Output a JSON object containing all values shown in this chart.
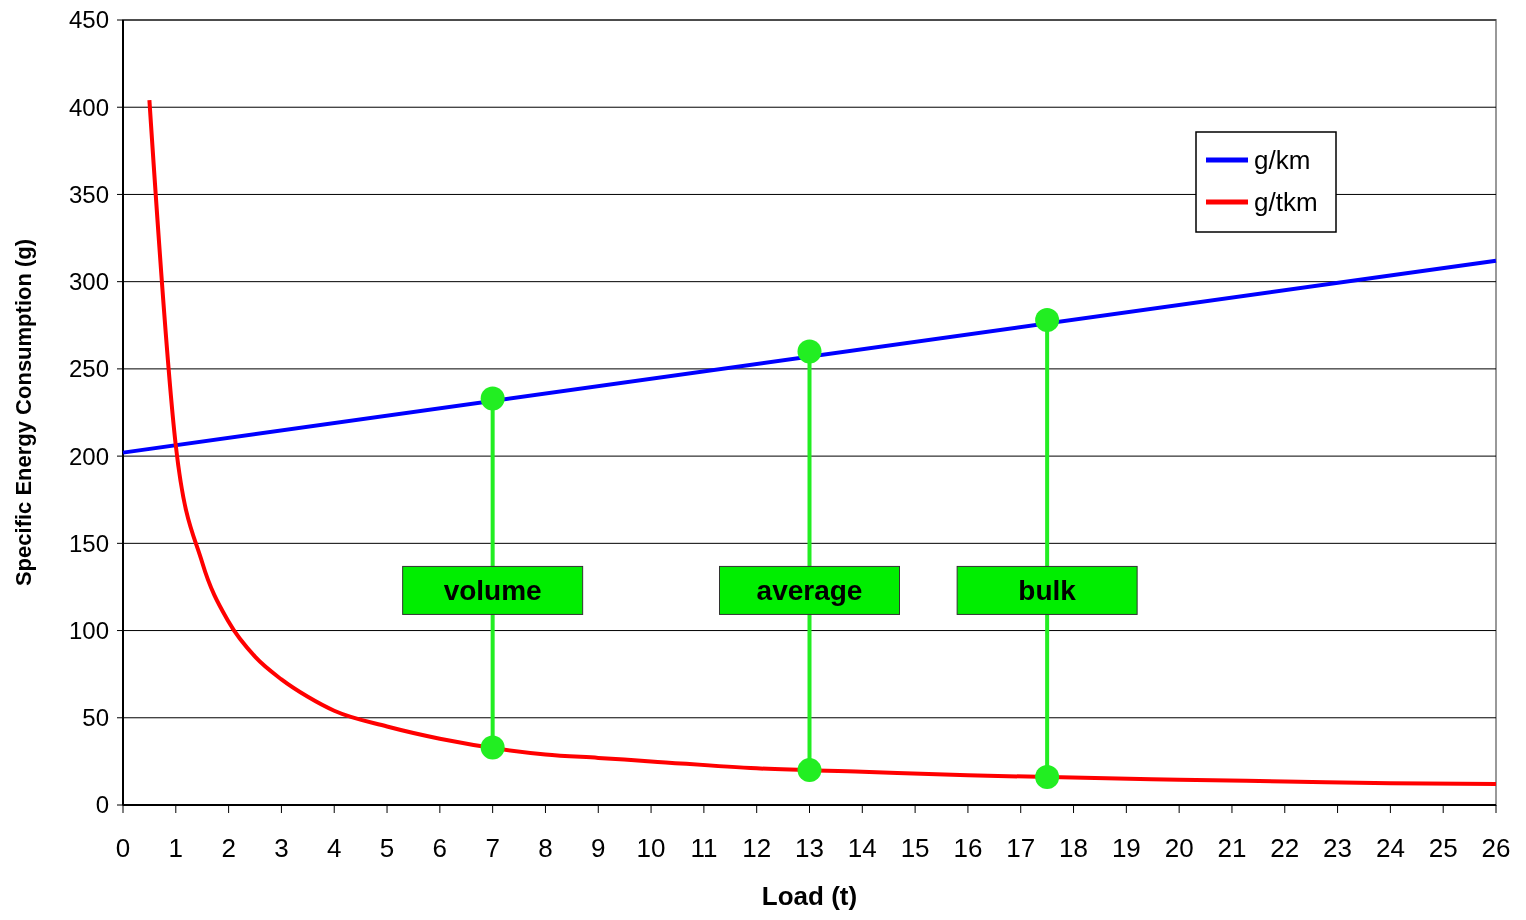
{
  "chart_data": {
    "type": "line",
    "xlabel": "Load (t)",
    "ylabel": "Specific Energy Consumption (g)",
    "xlim": [
      0,
      26
    ],
    "xticks": [
      0,
      1,
      2,
      3,
      4,
      5,
      6,
      7,
      8,
      9,
      10,
      11,
      12,
      13,
      14,
      15,
      16,
      17,
      18,
      19,
      20,
      21,
      22,
      23,
      24,
      25,
      26
    ],
    "ylim": [
      0,
      450
    ],
    "yticks": [
      0,
      50,
      100,
      150,
      200,
      250,
      300,
      350,
      400,
      450
    ],
    "grid": "y",
    "legend": "top right",
    "line_style": "solid",
    "series": [
      {
        "name": "g/km",
        "color": "#0000ff",
        "x": [
          0,
          26
        ],
        "values": [
          202,
          312
        ]
      },
      {
        "name": "g/tkm",
        "color": "#ff0000",
        "x": [
          0.5,
          1,
          1.5,
          2,
          2.5,
          3,
          3.5,
          4,
          5,
          6,
          8,
          9,
          10,
          12,
          14,
          16,
          20,
          22,
          24,
          26
        ],
        "values": [
          404,
          206,
          139,
          105,
          85,
          72,
          62,
          54,
          45,
          38,
          29,
          27,
          25,
          21,
          19,
          17,
          14.5,
          13.5,
          12.5,
          12
        ]
      },
      {
        "color": "#22ee22",
        "marker": "circle",
        "x": [
          7,
          7
        ],
        "values": [
          233,
          33
        ]
      },
      {
        "color": "#22ee22",
        "marker": "circle",
        "x": [
          13,
          13
        ],
        "values": [
          260,
          20
        ]
      },
      {
        "color": "#22ee22",
        "marker": "circle",
        "x": [
          17.5,
          17.5
        ],
        "values": [
          278,
          16
        ]
      }
    ],
    "annotations": [
      {
        "text": "volume",
        "x": 7,
        "y": 123
      },
      {
        "text": "average",
        "x": 13,
        "y": 123
      },
      {
        "text": "bulk",
        "x": 17.5,
        "y": 123
      }
    ]
  }
}
